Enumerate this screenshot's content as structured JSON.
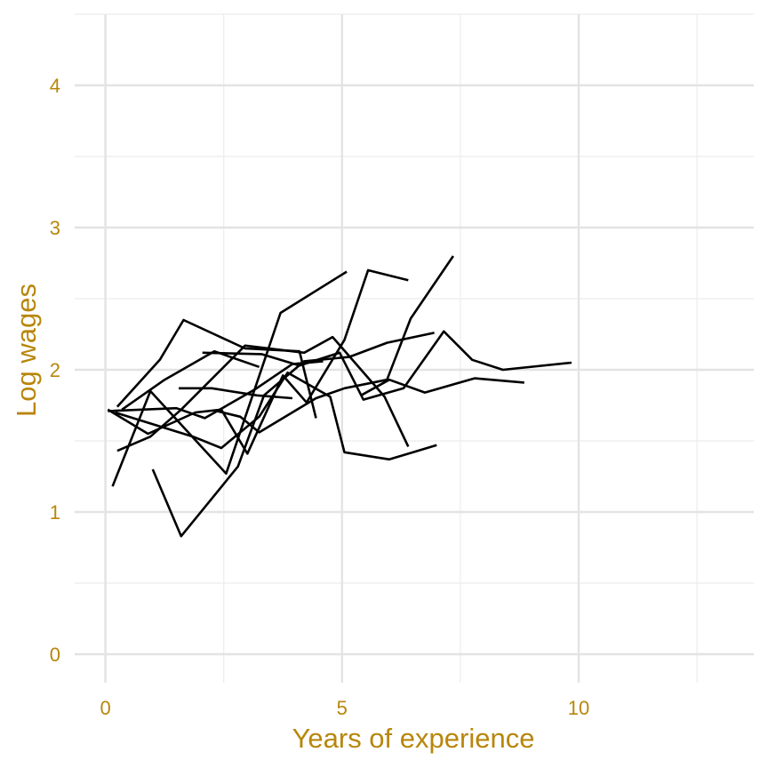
{
  "chart_data": {
    "type": "line",
    "xlabel": "Years of experience",
    "ylabel": "Log wages",
    "xlim": [
      -0.65,
      13.7
    ],
    "ylim": [
      -0.2,
      4.5
    ],
    "xticks": [
      0,
      5,
      10
    ],
    "yticks": [
      0,
      1,
      2,
      3,
      4
    ],
    "xminor": [
      2.5,
      7.5,
      12.5
    ],
    "yminor": [
      0.5,
      1.5,
      2.5,
      3.5,
      4.5
    ],
    "grid": true,
    "colors": {
      "line": "#000000",
      "text": "#b8860b",
      "grid": "#e3e3e3"
    },
    "series": [
      {
        "x": [
          0.25,
          1.15,
          1.65,
          2.95,
          4.1,
          4.45
        ],
        "y": [
          1.74,
          2.07,
          2.35,
          2.15,
          2.13,
          1.66
        ]
      },
      {
        "x": [
          0.35,
          1.25,
          2.3,
          3.25
        ],
        "y": [
          1.72,
          1.93,
          2.13,
          2.02
        ]
      },
      {
        "x": [
          0.15,
          0.95,
          2.55,
          3.7,
          5.1
        ],
        "y": [
          1.18,
          1.85,
          1.27,
          2.4,
          2.69
        ]
      },
      {
        "x": [
          0.25,
          0.95,
          1.6,
          2.95,
          4.2,
          4.8,
          5.9,
          6.4
        ],
        "y": [
          1.43,
          1.53,
          1.72,
          2.17,
          2.12,
          2.23,
          1.81,
          1.46
        ]
      },
      {
        "x": [
          0.05,
          0.9,
          1.9,
          2.45,
          3.0,
          3.75,
          4.25,
          5.05,
          5.55,
          6.4
        ],
        "y": [
          1.72,
          1.55,
          1.7,
          1.72,
          1.41,
          1.96,
          1.77,
          2.21,
          2.7,
          2.63
        ]
      },
      {
        "x": [
          1.0,
          1.6,
          2.8,
          3.35,
          4.2,
          5.15,
          5.95,
          6.95
        ],
        "y": [
          1.3,
          0.83,
          1.32,
          1.82,
          2.06,
          2.09,
          2.19,
          2.26
        ]
      },
      {
        "x": [
          2.35,
          2.85,
          3.25,
          4.45,
          5.05,
          5.95,
          6.45,
          7.35
        ],
        "y": [
          1.71,
          1.67,
          1.56,
          1.8,
          1.87,
          1.93,
          2.36,
          2.8
        ]
      },
      {
        "x": [
          0.2,
          1.85,
          2.45,
          3.25,
          3.85,
          4.75,
          5.05,
          6.0,
          7.0
        ],
        "y": [
          1.7,
          1.53,
          1.45,
          1.67,
          1.98,
          1.81,
          1.42,
          1.37,
          1.47
        ]
      },
      {
        "x": [
          1.55,
          2.25,
          3.2,
          3.95
        ],
        "y": [
          1.87,
          1.87,
          1.82,
          1.8
        ]
      },
      {
        "x": [
          0.05,
          1.5,
          2.1,
          3.15,
          3.95,
          4.6
        ],
        "y": [
          1.71,
          1.73,
          1.66,
          1.86,
          2.04,
          2.06
        ]
      },
      {
        "x": [
          2.05,
          3.3,
          4.1,
          4.95,
          5.45,
          6.3,
          7.15,
          7.75,
          8.4,
          9.85
        ],
        "y": [
          2.12,
          2.11,
          2.03,
          2.12,
          1.79,
          1.87,
          2.27,
          2.07,
          2.0,
          2.05
        ]
      },
      {
        "x": [
          5.4,
          6.0,
          6.75,
          7.8,
          8.85
        ],
        "y": [
          1.82,
          1.93,
          1.84,
          1.94,
          1.91
        ]
      }
    ]
  }
}
